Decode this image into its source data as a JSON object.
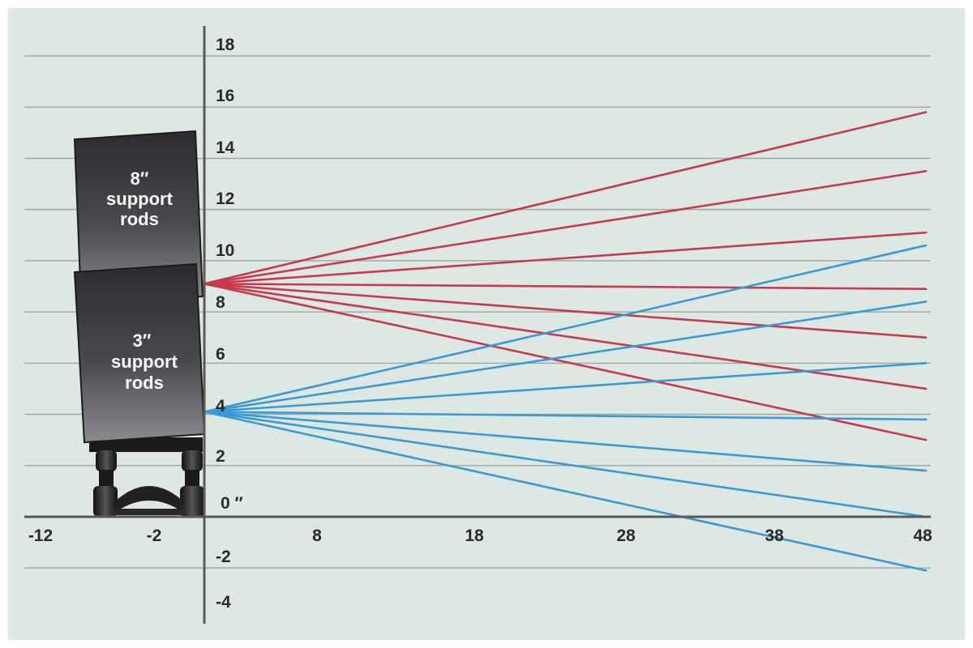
{
  "colors": {
    "background": "#dde8e2",
    "grid": "#a3aaa6",
    "axis": "#5a5a5a",
    "high_lines": "#c6394f",
    "low_lines": "#3a9ad6",
    "box": "#3a3a3e"
  },
  "y_ticks": [
    "18",
    "16",
    "14",
    "12",
    "10",
    "8",
    "6",
    "4",
    "2",
    "0 ″",
    "-2",
    "-4"
  ],
  "x_ticks": [
    "-12",
    "-2",
    "8",
    "18",
    "28",
    "38",
    "48"
  ],
  "labels": {
    "upper_box": [
      "8″",
      "support",
      "rods"
    ],
    "lower_box": [
      "3″",
      "support",
      "rods"
    ]
  },
  "chart_data": {
    "type": "line",
    "xlim": [
      -12,
      48
    ],
    "ylim": [
      -4,
      18
    ],
    "grid": true,
    "series": [
      {
        "group": "8″ support rods",
        "color": "#c6394f",
        "x": [
          0,
          48
        ],
        "y": [
          9.1,
          15.8
        ]
      },
      {
        "group": "8″ support rods",
        "color": "#c6394f",
        "x": [
          0,
          48
        ],
        "y": [
          9.1,
          13.5
        ]
      },
      {
        "group": "8″ support rods",
        "color": "#c6394f",
        "x": [
          0,
          48
        ],
        "y": [
          9.1,
          11.1
        ]
      },
      {
        "group": "8″ support rods",
        "color": "#c6394f",
        "x": [
          0,
          48
        ],
        "y": [
          9.1,
          8.9
        ]
      },
      {
        "group": "8″ support rods",
        "color": "#c6394f",
        "x": [
          0,
          48
        ],
        "y": [
          9.1,
          7.0
        ]
      },
      {
        "group": "8″ support rods",
        "color": "#c6394f",
        "x": [
          0,
          48
        ],
        "y": [
          9.1,
          5.0
        ]
      },
      {
        "group": "8″ support rods",
        "color": "#c6394f",
        "x": [
          0,
          48
        ],
        "y": [
          9.1,
          3.0
        ]
      },
      {
        "group": "3″ support rods",
        "color": "#3a9ad6",
        "x": [
          0,
          48
        ],
        "y": [
          4.1,
          10.6
        ]
      },
      {
        "group": "3″ support rods",
        "color": "#3a9ad6",
        "x": [
          0,
          48
        ],
        "y": [
          4.1,
          8.4
        ]
      },
      {
        "group": "3″ support rods",
        "color": "#3a9ad6",
        "x": [
          0,
          48
        ],
        "y": [
          4.1,
          6.0
        ]
      },
      {
        "group": "3″ support rods",
        "color": "#3a9ad6",
        "x": [
          0,
          48
        ],
        "y": [
          4.1,
          3.8
        ]
      },
      {
        "group": "3″ support rods",
        "color": "#3a9ad6",
        "x": [
          0,
          48
        ],
        "y": [
          4.1,
          1.8
        ]
      },
      {
        "group": "3″ support rods",
        "color": "#3a9ad6",
        "x": [
          0,
          48
        ],
        "y": [
          4.1,
          0.0
        ]
      },
      {
        "group": "3″ support rods",
        "color": "#3a9ad6",
        "x": [
          0,
          48
        ],
        "y": [
          4.1,
          -2.1
        ]
      }
    ]
  }
}
